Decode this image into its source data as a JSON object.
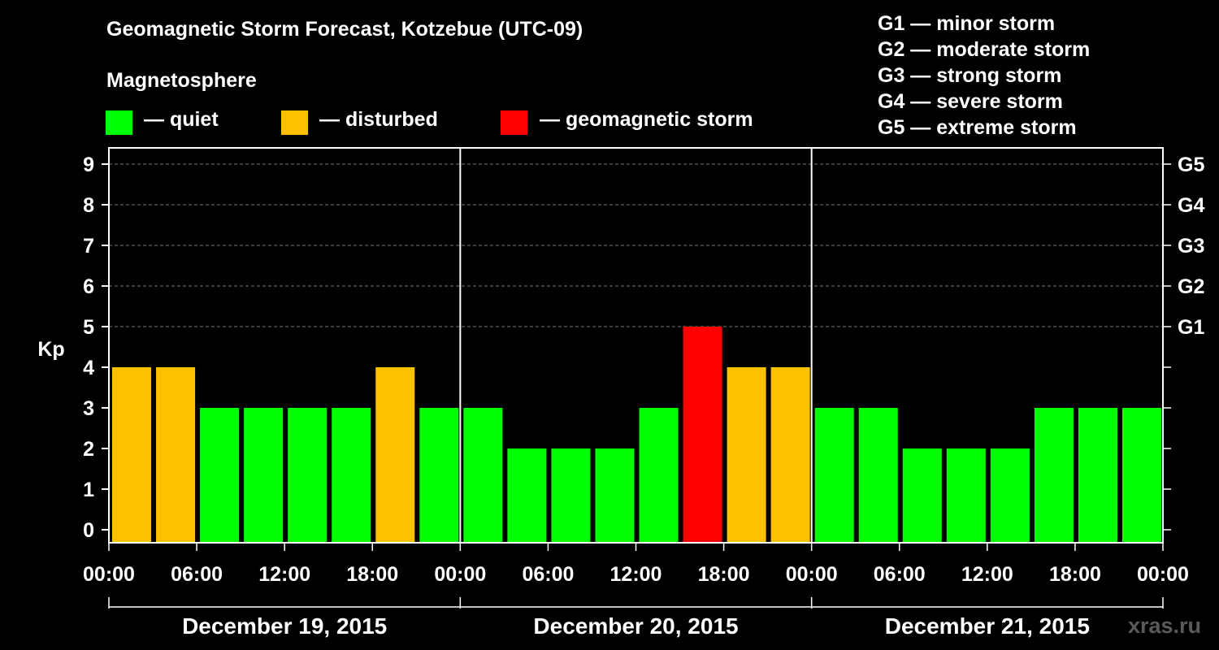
{
  "header": {
    "title": "Geomagnetic Storm Forecast, Kotzebue (UTC-09)",
    "magnetosphere_label": "Magnetosphere",
    "legend": [
      {
        "label": "— quiet",
        "color": "#00ff00"
      },
      {
        "label": "— disturbed",
        "color": "#ffc000"
      },
      {
        "label": "— geomagnetic storm",
        "color": "#ff0000"
      }
    ],
    "g_scale": [
      "G1 — minor storm",
      "G2 — moderate storm",
      "G3 — strong storm",
      "G4 — severe storm",
      "G5 — extreme storm"
    ]
  },
  "watermark": "xras.ru",
  "chart_data": {
    "type": "bar",
    "title": "Geomagnetic Storm Forecast, Kotzebue (UTC-09)",
    "ylabel": "Kp",
    "ylim": [
      0,
      9
    ],
    "y_ticks": [
      "0",
      "1",
      "2",
      "3",
      "4",
      "5",
      "6",
      "7",
      "8",
      "9"
    ],
    "right_ticks": [
      {
        "kp": 5,
        "label": "G1"
      },
      {
        "kp": 6,
        "label": "G2"
      },
      {
        "kp": 7,
        "label": "G3"
      },
      {
        "kp": 8,
        "label": "G4"
      },
      {
        "kp": 9,
        "label": "G5"
      }
    ],
    "x_ticks": [
      "00:00",
      "06:00",
      "12:00",
      "18:00",
      "00:00",
      "06:00",
      "12:00",
      "18:00",
      "00:00",
      "06:00",
      "12:00",
      "18:00",
      "00:00"
    ],
    "days": [
      "December 19, 2015",
      "December 20, 2015",
      "December 21, 2015"
    ],
    "bar_interval_hours": 3,
    "values": [
      4,
      4,
      3,
      3,
      3,
      3,
      4,
      3,
      3,
      2,
      2,
      2,
      3,
      5,
      4,
      4,
      3,
      3,
      2,
      2,
      2,
      3,
      3,
      3
    ],
    "colors": {
      "quiet": "#00ff00",
      "disturbed": "#ffc000",
      "storm": "#ff0000"
    },
    "grid": true
  }
}
